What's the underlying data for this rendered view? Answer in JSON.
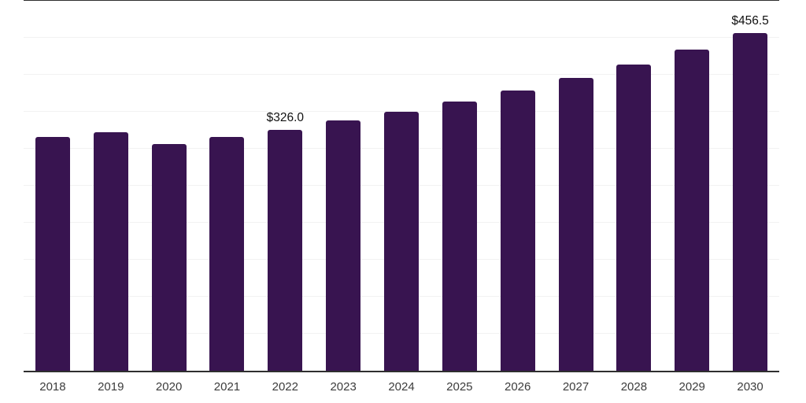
{
  "chart_data": {
    "type": "bar",
    "title": "",
    "xlabel": "",
    "ylabel": "",
    "categories": [
      "2018",
      "2019",
      "2020",
      "2021",
      "2022",
      "2023",
      "2024",
      "2025",
      "2026",
      "2027",
      "2028",
      "2029",
      "2030"
    ],
    "values": [
      315.6,
      322.0,
      306.4,
      316.0,
      326.0,
      338.6,
      350.3,
      363.5,
      379.0,
      395.4,
      413.5,
      434.0,
      456.5
    ],
    "bar_labels": [
      "",
      "",
      "",
      "",
      "$326.0",
      "",
      "",
      "",
      "",
      "",
      "",
      "",
      "$456.5"
    ],
    "ylim": [
      0,
      500
    ],
    "grid_step": 50,
    "grid": "horizontal-light",
    "legend_position": "none",
    "colors": {
      "bar": "#381450",
      "axis": "#2f2f2f",
      "gridline": "#f2f2f2",
      "value_label": "#111111",
      "tick_label": "#3c3c3c",
      "background": "#ffffff"
    }
  }
}
